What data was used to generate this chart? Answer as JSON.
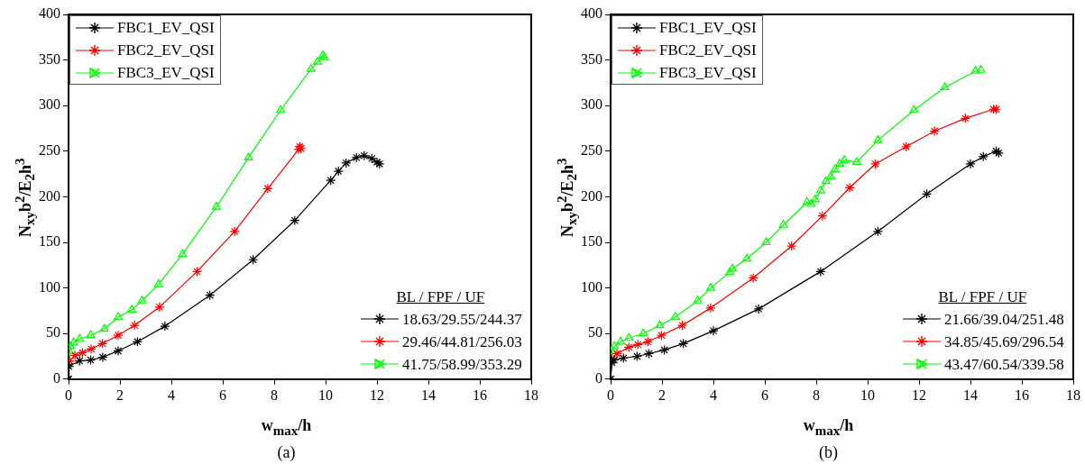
{
  "chart_data": [
    {
      "type": "line",
      "title": "(a)",
      "xlabel": "w$_{max}$/h",
      "ylabel": "N$_{xy}$b$^{2}$/E$_{2}$h$^{3}$",
      "xlim": [
        0,
        18
      ],
      "xticks": [
        0,
        2,
        4,
        6,
        8,
        10,
        12,
        14,
        16,
        18
      ],
      "ylim": [
        0,
        400
      ],
      "yticks": [
        0,
        50,
        100,
        150,
        200,
        250,
        300,
        350,
        400
      ],
      "legend": "top left",
      "annotations": [
        "BL / FPF / UF",
        "18.63/29.55/244.37",
        "29.46/44.81/256.03",
        "41.75/58.99/353.29"
      ],
      "series": [
        {
          "name": "FBC1_EV_QSI",
          "color": "#000000",
          "marker": "cross",
          "x": [
            0,
            0.02,
            0.43,
            0.86,
            1.33,
            1.93,
            2.68,
            3.75,
            5.5,
            7.18,
            8.8,
            10.2,
            10.5,
            10.8,
            11.2,
            11.5,
            11.8,
            12.0,
            12.1
          ],
          "values": [
            0,
            14,
            20,
            21,
            24,
            31,
            41,
            58,
            92,
            131,
            174,
            218,
            228,
            237,
            243,
            245,
            242,
            238,
            236
          ]
        },
        {
          "name": "FBC2_EV_QSI",
          "color": "#ff0000",
          "marker": "cross",
          "x": [
            0,
            0.05,
            0.25,
            0.54,
            0.88,
            1.32,
            1.93,
            2.57,
            3.54,
            5.0,
            6.46,
            7.75,
            8.95,
            9.0,
            9.04
          ],
          "values": [
            0,
            20,
            26,
            29,
            33,
            39,
            48,
            59,
            79,
            118,
            162,
            209,
            252,
            255,
            253
          ]
        },
        {
          "name": "FBC3_EV_QSI",
          "color": "#00ff00",
          "marker": "triangle",
          "x": [
            0,
            0.05,
            0.08,
            0.2,
            0.43,
            0.86,
            1.39,
            1.93,
            2.46,
            2.86,
            3.5,
            4.43,
            5.75,
            7.0,
            8.25,
            9.43,
            9.68,
            9.89,
            9.95
          ],
          "values": [
            0,
            30,
            36,
            40,
            44,
            48,
            55,
            68,
            76,
            86,
            104,
            137,
            189,
            243,
            295,
            340,
            348,
            355,
            353
          ]
        }
      ]
    },
    {
      "type": "line",
      "title": "(b)",
      "xlabel": "w$_{max}$/h",
      "ylabel": "N$_{xy}$b$^{2}$/E$_{2}$h$^{3}$",
      "xlim": [
        0,
        18
      ],
      "xticks": [
        0,
        2,
        4,
        6,
        8,
        10,
        12,
        14,
        16,
        18
      ],
      "ylim": [
        0,
        400
      ],
      "yticks": [
        0,
        50,
        100,
        150,
        200,
        250,
        300,
        350,
        400
      ],
      "legend": "top left",
      "annotations": [
        "BL / FPF / UF",
        "21.66/39.04/251.48",
        "34.85/45.69/296.54",
        "43.47/60.54/339.58"
      ],
      "series": [
        {
          "name": "FBC1_EV_QSI",
          "color": "#000000",
          "marker": "cross",
          "x": [
            0,
            0.05,
            0.14,
            0.5,
            1.03,
            1.49,
            2.09,
            2.83,
            4.0,
            5.76,
            8.17,
            10.4,
            12.3,
            14.0,
            14.5,
            15.0,
            15.1
          ],
          "values": [
            0,
            18,
            21,
            23,
            25,
            28,
            32,
            39,
            53,
            77,
            118,
            162,
            203,
            236,
            244,
            250,
            248
          ]
        },
        {
          "name": "FBC2_EV_QSI",
          "color": "#ff0000",
          "marker": "cross",
          "x": [
            0,
            0.05,
            0.25,
            0.71,
            1.06,
            1.45,
            1.98,
            2.79,
            3.89,
            5.55,
            7.04,
            8.24,
            9.3,
            10.3,
            11.5,
            12.6,
            13.8,
            14.9,
            15.0
          ],
          "values": [
            0,
            22,
            28,
            35,
            38,
            41,
            48,
            59,
            78,
            111,
            146,
            179,
            210,
            236,
            255,
            272,
            286,
            296,
            296
          ]
        },
        {
          "name": "FBC3_EV_QSI",
          "color": "#00ff00",
          "marker": "triangle",
          "x": [
            0,
            0.05,
            0.14,
            0.39,
            0.71,
            1.27,
            1.91,
            2.51,
            3.39,
            3.89,
            4.63,
            4.74,
            5.3,
            6.05,
            6.72,
            7.64,
            7.8,
            7.96,
            8.17,
            8.38,
            8.56,
            8.73,
            8.91,
            9.09,
            9.58,
            10.4,
            11.8,
            13.0,
            14.2,
            14.4
          ],
          "values": [
            0,
            30,
            36,
            41,
            45,
            50,
            59,
            68,
            86,
            100,
            117,
            121,
            132,
            150,
            169,
            194,
            192,
            197,
            207,
            217,
            222,
            230,
            236,
            240,
            238,
            262,
            295,
            320,
            338,
            339
          ]
        }
      ]
    }
  ]
}
